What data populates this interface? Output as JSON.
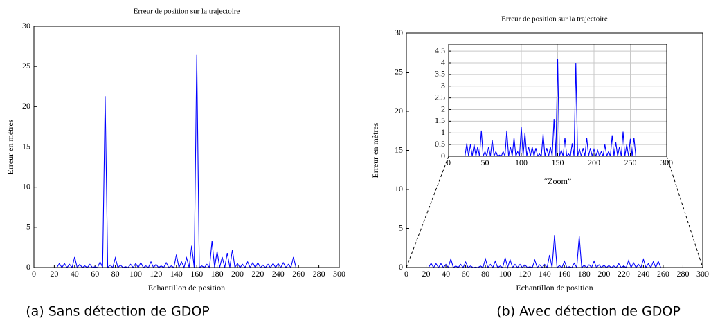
{
  "chart_data": [
    {
      "type": "line",
      "title": "Erreur de position sur la trajectoire",
      "xlabel": "Echantillon de position",
      "ylabel": "Erreur en mètres",
      "caption": "(a) Sans détection de GDOP",
      "color": "#0000ff",
      "xlim": [
        0,
        300
      ],
      "ylim": [
        0,
        30
      ],
      "xticks": [
        0,
        20,
        40,
        60,
        80,
        100,
        120,
        140,
        160,
        180,
        200,
        220,
        240,
        260,
        280,
        300
      ],
      "yticks": [
        0,
        5,
        10,
        15,
        20,
        25,
        30
      ],
      "grid": false,
      "x": [
        0,
        22.5,
        25,
        27.5,
        30,
        32.5,
        35,
        37.5,
        40,
        42.5,
        45,
        47.5,
        50,
        52.5,
        55,
        57.5,
        60,
        62.5,
        65,
        67.5,
        70,
        72.5,
        75,
        77.5,
        80,
        82.5,
        85,
        87.5,
        90,
        92.5,
        95,
        97.5,
        100,
        102.5,
        105,
        107.5,
        110,
        112.5,
        115,
        117.5,
        120,
        122.5,
        125,
        127.5,
        130,
        132.5,
        135,
        137.5,
        140,
        142.5,
        145,
        147.5,
        150,
        152.5,
        155,
        157.5,
        160,
        162.5,
        165,
        167.5,
        170,
        172.5,
        175,
        177.5,
        180,
        182.5,
        185,
        187.5,
        190,
        192.5,
        195,
        197.5,
        200,
        202.5,
        205,
        207.5,
        210,
        212.5,
        215,
        217.5,
        220,
        222.5,
        225,
        227.5,
        230,
        232.5,
        235,
        237.5,
        240,
        242.5,
        245,
        247.5,
        250,
        252.5,
        255,
        257.5,
        300
      ],
      "values": [
        0,
        0,
        0.5,
        0,
        0.5,
        0,
        0.4,
        0,
        1.3,
        0,
        0.4,
        0,
        0.2,
        0,
        0.4,
        0,
        0.1,
        0,
        0.7,
        0,
        21.3,
        0,
        0.3,
        0,
        1.2,
        0,
        0.3,
        0,
        0.1,
        0,
        0.4,
        0,
        0.5,
        0,
        0.6,
        0,
        0.2,
        0,
        0.7,
        0,
        0.4,
        0,
        0.2,
        0,
        0.6,
        0,
        0.2,
        0,
        1.6,
        0,
        0.7,
        0,
        1.2,
        0,
        2.7,
        0,
        26.5,
        0,
        0.2,
        0,
        0.4,
        0,
        3.3,
        0,
        2,
        0,
        1.3,
        0,
        1.8,
        0,
        2.2,
        0,
        0.5,
        0,
        0.4,
        0,
        0.7,
        0,
        0.6,
        0,
        0.6,
        0,
        0.3,
        0,
        0.4,
        0,
        0.5,
        0,
        0.5,
        0,
        0.6,
        0,
        0.4,
        0,
        1.3,
        0,
        0
      ]
    },
    {
      "type": "line",
      "title": "Erreur de position sur la trajectoire",
      "xlabel": "Echantillon de position",
      "ylabel": "Erreur en mètres",
      "caption": "(b) Avec détection de GDOP",
      "color": "#0000ff",
      "xlim": [
        0,
        300
      ],
      "ylim": [
        0,
        30
      ],
      "xticks": [
        0,
        20,
        40,
        60,
        80,
        100,
        120,
        140,
        160,
        180,
        200,
        220,
        240,
        260,
        280,
        300
      ],
      "yticks": [
        0,
        5,
        10,
        15,
        20,
        25,
        30
      ],
      "grid": false,
      "x": [
        0,
        22.5,
        25,
        27.5,
        30,
        32.5,
        35,
        37.5,
        40,
        42.5,
        45,
        47.5,
        50,
        52.5,
        55,
        57.5,
        60,
        62.5,
        65,
        67.5,
        70,
        72.5,
        75,
        77.5,
        80,
        82.5,
        85,
        87.5,
        90,
        92.5,
        95,
        97.5,
        100,
        102.5,
        105,
        107.5,
        110,
        112.5,
        115,
        117.5,
        120,
        122.5,
        125,
        127.5,
        130,
        132.5,
        135,
        137.5,
        140,
        142.5,
        145,
        147.5,
        150,
        152.5,
        155,
        157.5,
        160,
        162.5,
        165,
        167.5,
        170,
        172.5,
        175,
        177.5,
        180,
        182.5,
        185,
        187.5,
        190,
        192.5,
        195,
        197.5,
        200,
        202.5,
        205,
        207.5,
        210,
        212.5,
        215,
        217.5,
        220,
        222.5,
        225,
        227.5,
        230,
        232.5,
        235,
        237.5,
        240,
        242.5,
        245,
        247.5,
        250,
        252.5,
        255,
        257.5,
        300
      ],
      "values": [
        0,
        0,
        0.55,
        0,
        0.5,
        0,
        0.5,
        0,
        0.4,
        0,
        1.1,
        0,
        0.2,
        0,
        0.4,
        0,
        0.7,
        0,
        0.2,
        0,
        0.05,
        0,
        0.2,
        0,
        1.1,
        0,
        0.4,
        0,
        0.8,
        0,
        0.2,
        0,
        1.25,
        0,
        1,
        0,
        0.4,
        0,
        0.4,
        0,
        0.35,
        0,
        0.1,
        0,
        0.95,
        0,
        0.35,
        0,
        0.4,
        0,
        1.6,
        0,
        4.15,
        0,
        0.25,
        0,
        0.8,
        0,
        0.1,
        0,
        0.55,
        0,
        4,
        0,
        0.3,
        0,
        0.35,
        0,
        0.8,
        0,
        0.35,
        0,
        0.3,
        0,
        0.25,
        0,
        0.2,
        0,
        0.5,
        0,
        0.2,
        0,
        0.9,
        0,
        0.6,
        0,
        0.4,
        0,
        1.05,
        0,
        0.5,
        0,
        0.75,
        0,
        0.8,
        0,
        0
      ],
      "inset": {
        "xlabel": "“Zoom”",
        "xlim": [
          0,
          300
        ],
        "ylim": [
          0,
          4.8
        ],
        "xticks": [
          0,
          50,
          100,
          150,
          200,
          250,
          300
        ],
        "yticks": [
          0,
          0.5,
          1,
          1.5,
          2,
          2.5,
          3,
          3.5,
          4,
          4.5
        ],
        "grid": true
      }
    }
  ]
}
